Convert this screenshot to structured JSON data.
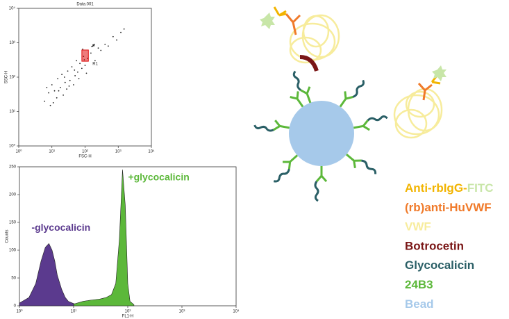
{
  "chart_data": [
    {
      "type": "scatter",
      "title": "Data.001",
      "xlabel": "FSC-H",
      "ylabel": "SSC-H",
      "log_x": true,
      "log_y": true,
      "xlim": [
        1,
        10000
      ],
      "ylim": [
        1,
        10000
      ],
      "xticks": [
        {
          "value": 1,
          "label": "10⁰"
        },
        {
          "value": 10,
          "label": "10¹"
        },
        {
          "value": 100,
          "label": "10²"
        },
        {
          "value": 1000,
          "label": "10³"
        },
        {
          "value": 10000,
          "label": "10⁴"
        }
      ],
      "yticks": [
        {
          "value": 1,
          "label": "10⁰"
        },
        {
          "value": 10,
          "label": "10¹"
        },
        {
          "value": 100,
          "label": "10²"
        },
        {
          "value": 1000,
          "label": "10³"
        },
        {
          "value": 10000,
          "label": "10⁴"
        }
      ],
      "color": "#222222",
      "x": [
        6,
        8,
        9,
        10,
        12,
        14,
        15,
        18,
        20,
        22,
        25,
        28,
        30,
        35,
        40,
        45,
        50,
        55,
        60,
        70,
        80,
        90,
        100,
        120,
        150,
        200,
        250,
        300,
        400,
        500,
        700,
        900,
        1200,
        1500,
        7,
        11,
        16,
        24,
        33,
        48,
        65,
        85,
        110,
        170,
        180,
        190,
        175,
        185,
        160,
        95
      ],
      "y": [
        20,
        35,
        15,
        60,
        40,
        25,
        90,
        50,
        120,
        30,
        70,
        45,
        150,
        80,
        200,
        60,
        110,
        300,
        140,
        250,
        180,
        400,
        220,
        350,
        500,
        300,
        700,
        600,
        900,
        800,
        1500,
        1200,
        2000,
        2500,
        50,
        18,
        40,
        100,
        55,
        160,
        90,
        650,
        130,
        800,
        850,
        900,
        870,
        820,
        780,
        320
      ],
      "gate": {
        "label": "R1",
        "color": "#e01010",
        "xlim": [
          80,
          126
        ],
        "ylim": [
          290,
          615
        ]
      }
    },
    {
      "type": "area",
      "xlabel": "FL1-H",
      "ylabel": "Counts",
      "log_x": true,
      "xlim": [
        1,
        10000
      ],
      "ylim": [
        0,
        250
      ],
      "xticks": [
        {
          "value": 1,
          "label": "10⁰"
        },
        {
          "value": 10,
          "label": "10¹"
        },
        {
          "value": 100,
          "label": "10²"
        },
        {
          "value": 1000,
          "label": "10³"
        },
        {
          "value": 10000,
          "label": "10⁴"
        }
      ],
      "yticks": [
        0,
        50,
        100,
        150,
        200,
        250
      ],
      "series": [
        {
          "name": "-glycocalicin",
          "color": "#5b3a8e",
          "x": [
            1,
            1.5,
            2,
            2.5,
            3,
            3.5,
            4,
            4.5,
            5,
            6,
            7,
            8,
            10,
            12
          ],
          "values": [
            5,
            15,
            40,
            80,
            105,
            112,
            100,
            80,
            55,
            30,
            15,
            8,
            4,
            2
          ]
        },
        {
          "name": "+glycocalicin",
          "color": "#5cb83a",
          "x": [
            10,
            15,
            20,
            30,
            40,
            50,
            60,
            70,
            80,
            90,
            100,
            110,
            130
          ],
          "values": [
            3,
            8,
            10,
            12,
            15,
            20,
            40,
            120,
            245,
            180,
            40,
            8,
            2
          ]
        }
      ]
    }
  ],
  "legend": [
    {
      "parts": [
        {
          "text": "Anti-rbIgG-",
          "color": "#f2b400"
        },
        {
          "text": "FITC",
          "color": "#c8e6a8"
        }
      ]
    },
    {
      "parts": [
        {
          "text": "(rb)anti-HuVWF",
          "color": "#f07a2a"
        }
      ]
    },
    {
      "parts": [
        {
          "text": "VWF",
          "color": "#f7ec9c"
        }
      ]
    },
    {
      "parts": [
        {
          "text": "Botrocetin",
          "color": "#7a1616"
        }
      ]
    },
    {
      "parts": [
        {
          "text": "Glycocalicin",
          "color": "#2a5f66"
        }
      ]
    },
    {
      "parts": [
        {
          "text": "24B3",
          "color": "#5cb83a"
        }
      ]
    },
    {
      "parts": [
        {
          "text": "Bead",
          "color": "#a6c9ea"
        }
      ]
    }
  ]
}
